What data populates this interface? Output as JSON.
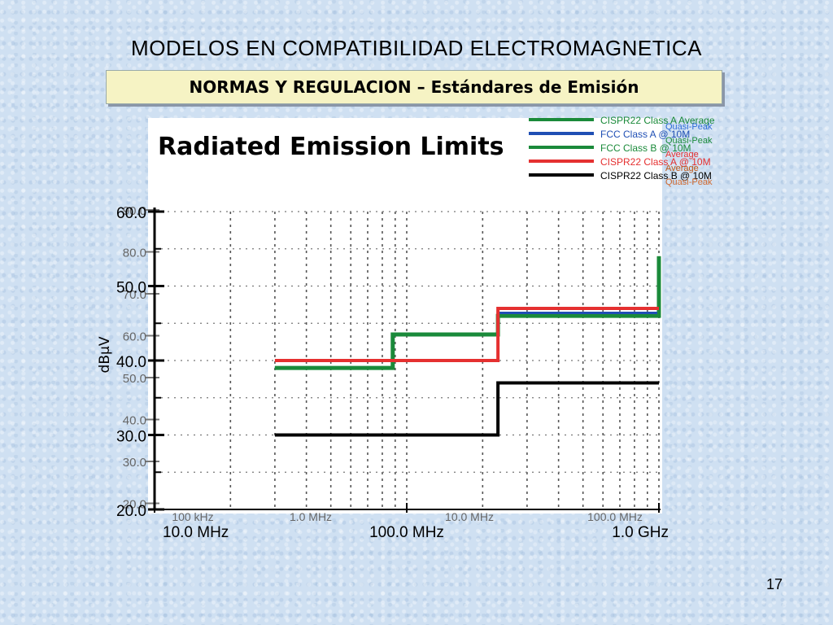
{
  "slide": {
    "title": "MODELOS EN COMPATIBILIDAD ELECTROMAGNETICA",
    "subtitle": "NORMAS Y REGULACION – Estándares de Emisión",
    "page_number": "17"
  },
  "chart_data": {
    "type": "line",
    "title": "Radiated Emission Limits",
    "ylabel": "dBµV",
    "xscale": "log",
    "xlim": [
      10,
      1000
    ],
    "ylim": [
      20,
      60
    ],
    "x_unit": "MHz",
    "y_ticks": [
      "60.0",
      "50.0",
      "40.0",
      "30.0",
      "20.0"
    ],
    "x_ticks": [
      {
        "x": 10,
        "label": "10.0 MHz"
      },
      {
        "x": 100,
        "label": "100.0 MHz"
      },
      {
        "x": 1000,
        "label": "1.0 GHz"
      }
    ],
    "ghost_y_ticks": [
      "90.0",
      "80.0",
      "70.0",
      "60.0",
      "50.0",
      "40.0",
      "30.0",
      "20.0"
    ],
    "ghost_x_labels": [
      "100 kHz",
      "1.0 MHz",
      "10.0 MHz",
      "100.0 MHz"
    ],
    "grid": true,
    "legend_position": "top-right",
    "series": [
      {
        "name": "CISPR22 Class A Average",
        "color": "#1a8a3a",
        "step": true,
        "x": [
          30,
          88,
          216,
          230,
          960,
          1000
        ],
        "y": [
          39,
          43.5,
          43.5,
          46,
          46,
          54
        ]
      },
      {
        "name": "FCC Class A @ 10M",
        "color": "#1f4fb4",
        "step": true,
        "x": [
          30,
          88,
          216,
          230,
          960,
          1000
        ],
        "y": [
          39,
          43.5,
          43.5,
          46.4,
          46.4,
          49.5
        ]
      },
      {
        "name": "FCC Class B @ 10M",
        "color": "#1a8a3a",
        "step": true,
        "x": [
          30,
          88,
          216,
          230,
          960,
          1000
        ],
        "y": [
          39,
          43.5,
          43.5,
          46,
          46,
          54
        ]
      },
      {
        "name": "CISPR22 Class A @ 10M",
        "color": "#e53030",
        "step": true,
        "x": [
          30,
          230,
          1000
        ],
        "y": [
          40,
          47,
          47
        ]
      },
      {
        "name": "CISPR22 Class B @ 10M",
        "color": "#000000",
        "step": true,
        "x": [
          30,
          230,
          1000
        ],
        "y": [
          30,
          37,
          37
        ]
      }
    ],
    "legend_extra": [
      "Quasi-Peak",
      "Quasi-Peak",
      "Average",
      "Average",
      "Quasi-Peak"
    ]
  }
}
